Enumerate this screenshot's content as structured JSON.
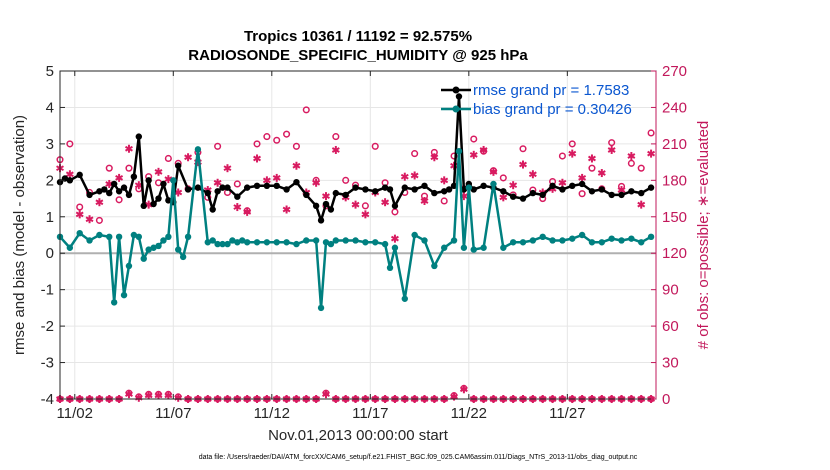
{
  "chart_data": {
    "type": "line",
    "title": "Tropics 10361 / 11192 = 92.575%",
    "subtitle": "RADIOSONDE_SPECIFIC_HUMIDITY @ 925 hPa",
    "xlabel": "Nov.01,2013 00:00:00 start",
    "ylabel": "rmse and bias (model - observation)",
    "ylabel_right": "# of obs: o=possible; ∗=evaluated",
    "footnote": "data file: /Users/raeder/DAI/ATM_forcXX/CAM6_setup/f.e21.FHIST_BGC.f09_025.CAM6assim.011/Diags_NTrS_2013-11/obs_diag_output.nc",
    "xlim": [
      0.25,
      30.5
    ],
    "ylim": [
      -4,
      5
    ],
    "ylim_right": [
      0,
      270
    ],
    "x_ticks": [
      1,
      6,
      11,
      16,
      21,
      26
    ],
    "x_tick_labels": [
      "11/02",
      "11/07",
      "11/12",
      "11/17",
      "11/22",
      "11/27"
    ],
    "y_ticks": [
      -4,
      -3,
      -2,
      -1,
      0,
      1,
      2,
      3,
      4,
      5
    ],
    "y_tick_labels": [
      "-4",
      "-3",
      "-2",
      "-1",
      "0",
      "1",
      "2",
      "3",
      "4",
      "5"
    ],
    "y2_ticks": [
      0,
      30,
      60,
      90,
      120,
      150,
      180,
      210,
      240,
      270
    ],
    "y2_tick_labels": [
      "0",
      "30",
      "60",
      "90",
      "120",
      "150",
      "180",
      "210",
      "240",
      "270"
    ],
    "grid": true,
    "legend_position": "top-right",
    "colors": {
      "rmse": "#000000",
      "bias": "#008080",
      "obs": "#d81b60",
      "zero_line": "#b0b0b0",
      "legend_text": "#0b57d0"
    },
    "series": [
      {
        "name": "rmse grand pr = 1.7583",
        "role": "rmse",
        "x": [
          0.25,
          0.5,
          0.75,
          1.25,
          1.75,
          2.25,
          2.5,
          2.75,
          3.0,
          3.25,
          3.5,
          3.75,
          4.0,
          4.25,
          4.5,
          4.75,
          5.0,
          5.25,
          5.5,
          5.75,
          6.0,
          6.25,
          6.75,
          7.25,
          7.75,
          8.0,
          8.25,
          8.5,
          8.75,
          9.25,
          9.75,
          10.25,
          10.75,
          11.25,
          11.75,
          12.25,
          12.75,
          13.25,
          13.5,
          13.75,
          14.0,
          14.25,
          14.75,
          15.25,
          15.75,
          16.25,
          16.75,
          17.0,
          17.25,
          17.75,
          18.25,
          18.75,
          19.25,
          19.75,
          20.0,
          20.25,
          20.5,
          20.75,
          21.0,
          21.25,
          21.75,
          22.25,
          22.75,
          23.25,
          23.75,
          24.25,
          24.75,
          25.25,
          25.75,
          26.25,
          26.75,
          27.25,
          27.75,
          28.25,
          28.75,
          29.25,
          29.75,
          30.25
        ],
        "values": [
          1.95,
          2.05,
          2.0,
          2.15,
          1.6,
          1.7,
          1.75,
          1.65,
          1.9,
          1.7,
          1.8,
          1.6,
          2.1,
          3.2,
          1.3,
          2.0,
          1.35,
          1.5,
          1.9,
          1.45,
          1.4,
          2.4,
          1.75,
          1.8,
          1.65,
          1.2,
          1.7,
          1.8,
          1.8,
          1.55,
          1.8,
          1.85,
          1.85,
          1.85,
          1.75,
          1.95,
          1.6,
          1.3,
          0.9,
          1.35,
          1.2,
          1.65,
          1.6,
          1.8,
          1.75,
          1.7,
          1.8,
          1.75,
          1.3,
          1.8,
          1.75,
          1.85,
          1.65,
          1.7,
          1.75,
          1.85,
          4.3,
          1.75,
          1.9,
          1.75,
          1.85,
          1.8,
          1.7,
          1.55,
          1.5,
          1.65,
          1.6,
          1.85,
          1.75,
          1.85,
          1.9,
          1.7,
          1.75,
          1.6,
          1.6,
          1.7,
          1.65,
          1.8
        ]
      },
      {
        "name": "bias grand pr = 0.30426",
        "role": "bias",
        "x": [
          0.25,
          0.75,
          1.25,
          1.75,
          2.25,
          2.75,
          3.0,
          3.25,
          3.5,
          3.75,
          4.0,
          4.25,
          4.5,
          4.75,
          5.0,
          5.25,
          5.5,
          5.75,
          6.0,
          6.25,
          6.5,
          6.75,
          7.25,
          7.75,
          8.0,
          8.25,
          8.5,
          8.75,
          9.0,
          9.25,
          9.5,
          9.75,
          10.25,
          10.75,
          11.25,
          11.75,
          12.25,
          12.75,
          13.25,
          13.5,
          13.75,
          14.0,
          14.25,
          14.75,
          15.25,
          15.75,
          16.25,
          16.75,
          17.0,
          17.25,
          17.75,
          18.25,
          18.75,
          19.25,
          19.75,
          20.25,
          20.5,
          20.75,
          21.0,
          21.25,
          21.75,
          22.25,
          22.75,
          23.25,
          23.75,
          24.25,
          24.75,
          25.25,
          25.75,
          26.25,
          26.75,
          27.25,
          27.75,
          28.25,
          28.75,
          29.25,
          29.75,
          30.25
        ],
        "values": [
          0.45,
          0.15,
          0.55,
          0.35,
          0.5,
          0.45,
          -1.35,
          0.45,
          -1.15,
          -0.35,
          0.5,
          0.45,
          -0.15,
          0.1,
          0.15,
          0.2,
          0.35,
          0.45,
          2.0,
          0.1,
          -0.1,
          0.45,
          2.85,
          0.3,
          0.35,
          0.25,
          0.25,
          0.25,
          0.35,
          0.3,
          0.35,
          0.3,
          0.3,
          0.3,
          0.3,
          0.3,
          0.25,
          0.35,
          0.35,
          -1.5,
          0.3,
          0.25,
          0.35,
          0.35,
          0.35,
          0.3,
          0.3,
          0.25,
          -0.4,
          0.15,
          -1.25,
          0.5,
          0.35,
          -0.35,
          0.15,
          0.35,
          2.8,
          0.15,
          1.8,
          0.1,
          0.15,
          1.9,
          0.15,
          0.3,
          0.3,
          0.35,
          0.45,
          0.35,
          0.35,
          0.4,
          0.5,
          0.3,
          0.3,
          0.4,
          0.35,
          0.4,
          0.3,
          0.45
        ]
      }
    ],
    "obs_possible": {
      "name": "possible",
      "x": [
        0.25,
        0.75,
        1.25,
        1.75,
        2.25,
        2.75,
        3.25,
        3.75,
        4.25,
        4.75,
        5.25,
        5.75,
        6.25,
        6.75,
        7.25,
        7.75,
        8.25,
        8.75,
        9.25,
        9.75,
        10.25,
        10.75,
        11.25,
        11.75,
        12.25,
        12.75,
        13.25,
        13.75,
        14.25,
        14.75,
        15.25,
        15.75,
        16.25,
        16.75,
        17.25,
        17.75,
        18.25,
        18.75,
        19.25,
        19.75,
        20.25,
        20.75,
        21.25,
        21.75,
        22.25,
        22.75,
        23.25,
        23.75,
        24.25,
        24.75,
        25.25,
        25.75,
        26.25,
        26.75,
        27.25,
        27.75,
        28.25,
        28.75,
        29.25,
        29.75,
        30.25
      ],
      "values": [
        197,
        210,
        158,
        170,
        147,
        190,
        164,
        190,
        173,
        183,
        178,
        198,
        194,
        173,
        203,
        166,
        208,
        170,
        177,
        155,
        210,
        216,
        213,
        218,
        208,
        238,
        180,
        159,
        216,
        180,
        176,
        159,
        208,
        178,
        154,
        170,
        202,
        167,
        203,
        163,
        200,
        173,
        214,
        204,
        188,
        182,
        168,
        206,
        172,
        165,
        179,
        200,
        210,
        169,
        190,
        173,
        211,
        175,
        194,
        190,
        219
      ]
    },
    "obs_evaluated": {
      "name": "evaluated",
      "x": [
        0.25,
        0.75,
        1.25,
        1.75,
        2.25,
        2.75,
        3.25,
        3.75,
        4.25,
        4.75,
        5.25,
        5.75,
        6.25,
        6.75,
        7.25,
        7.75,
        8.25,
        8.75,
        9.25,
        9.75,
        10.25,
        10.75,
        11.25,
        11.75,
        12.25,
        12.75,
        13.25,
        13.75,
        14.25,
        14.75,
        15.25,
        15.75,
        16.25,
        16.75,
        17.25,
        17.75,
        18.25,
        18.75,
        19.25,
        19.75,
        20.25,
        20.75,
        21.25,
        21.75,
        22.25,
        22.75,
        23.25,
        23.75,
        24.25,
        24.75,
        25.25,
        25.75,
        26.25,
        26.75,
        27.25,
        27.75,
        28.25,
        28.75,
        29.25,
        29.75,
        30.25
      ],
      "values": [
        190,
        185,
        152,
        148,
        162,
        177,
        182,
        206,
        176,
        160,
        187,
        181,
        170,
        199,
        195,
        172,
        178,
        190,
        158,
        154,
        198,
        180,
        182,
        156,
        192,
        170,
        178,
        167,
        205,
        166,
        160,
        152,
        170,
        162,
        132,
        183,
        184,
        163,
        199,
        180,
        192,
        167,
        201,
        205,
        187,
        166,
        176,
        193,
        185,
        170,
        173,
        178,
        202,
        182,
        198,
        186,
        205,
        172,
        200,
        160,
        202
      ]
    },
    "obs_bottom_x": [
      0.25,
      0.75,
      1.25,
      1.75,
      2.25,
      2.75,
      3.25,
      3.75,
      4.25,
      4.75,
      5.25,
      5.75,
      6.25,
      6.75,
      7.25,
      7.75,
      8.25,
      8.75,
      9.25,
      9.75,
      10.25,
      10.75,
      11.25,
      11.75,
      12.25,
      12.75,
      13.25,
      13.75,
      14.25,
      14.75,
      15.25,
      15.75,
      16.25,
      16.75,
      17.25,
      17.75,
      18.25,
      18.75,
      19.25,
      19.75,
      20.25,
      20.75,
      21.25,
      21.75,
      22.25,
      22.75,
      23.25,
      23.75,
      24.25,
      24.75,
      25.25,
      25.75,
      26.25,
      26.75,
      27.25,
      27.75,
      28.25,
      28.75,
      29.25,
      29.75,
      30.25
    ],
    "obs_bottom_values": [
      0,
      0,
      0,
      0,
      0,
      0,
      0,
      5,
      2,
      4,
      4,
      4,
      2,
      0,
      0,
      0,
      0,
      0,
      0,
      0,
      0,
      0,
      0,
      0,
      0,
      0,
      0,
      5,
      0,
      0,
      0,
      0,
      0,
      0,
      0,
      0,
      0,
      0,
      0,
      0,
      3,
      9,
      0,
      0,
      0,
      0,
      0,
      0,
      0,
      0,
      0,
      0,
      0,
      0,
      0,
      0,
      0,
      0,
      0,
      0,
      0
    ]
  }
}
